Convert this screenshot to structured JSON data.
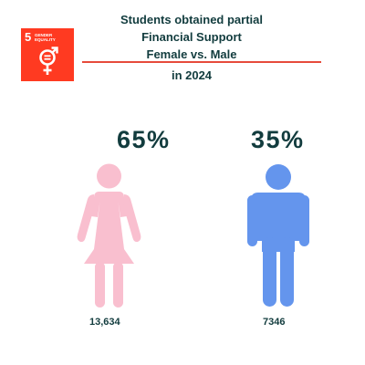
{
  "badge": {
    "number": "5",
    "label": "GENDER EQUALITY",
    "color": "#ff3a21",
    "icon": "gender-equality-icon"
  },
  "title": {
    "line1": "Students obtained partial",
    "line2": "Financial Support",
    "line3": "Female vs. Male"
  },
  "year": "in 2024",
  "female": {
    "percent": "65%",
    "count": "13,634",
    "color": "#f9bfcf",
    "icon": "female-figure-icon"
  },
  "male": {
    "percent": "35%",
    "count": "7346",
    "color": "#6495ed",
    "icon": "male-figure-icon"
  },
  "accent_color": "#e64a3b",
  "text_color": "#123c3e"
}
